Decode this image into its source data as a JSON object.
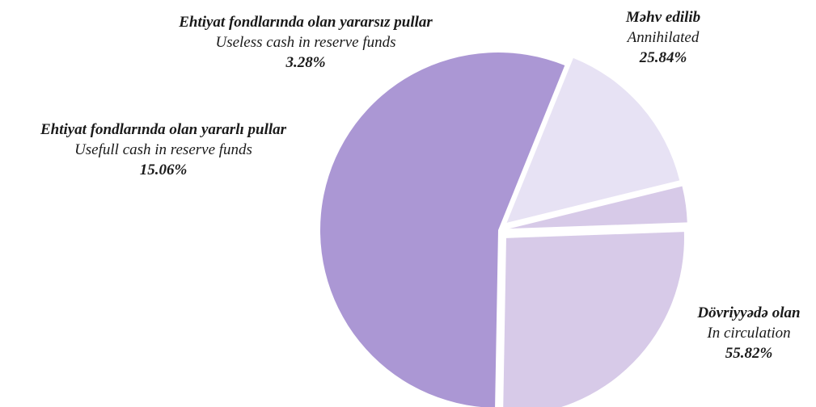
{
  "chart_data": {
    "type": "pie",
    "slices": [
      {
        "label_az": "Məhv edilib",
        "label_en": "Annihilated",
        "pct_label": "25.84%",
        "value": 25.84,
        "color": "#d7cae8"
      },
      {
        "label_az": "Dövriyyədə olan",
        "label_en": "In circulation",
        "pct_label": "55.82%",
        "value": 55.82,
        "color": "#ab97d4"
      },
      {
        "label_az": "Ehtiyat fondlarında olan yararlı pullar",
        "label_en": "Usefull cash in reserve funds",
        "pct_label": "15.06%",
        "value": 15.06,
        "color": "#e7e2f4"
      },
      {
        "label_az": "Ehtiyat fondlarında olan yararsız pullar",
        "label_en": "Useless cash in reserve funds",
        "pct_label": "3.28%",
        "value": 3.28,
        "color": "#d7cae8"
      }
    ]
  }
}
